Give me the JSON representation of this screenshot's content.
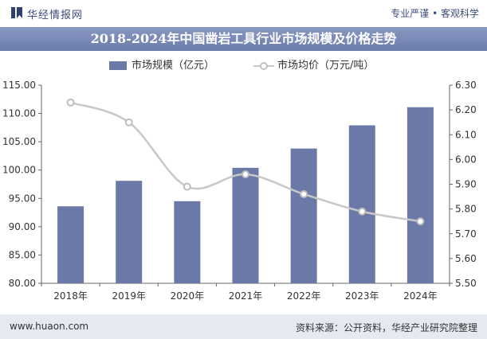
{
  "header": {
    "brand_name": "华经情报网",
    "tagline": "专业严谨 • 客观科学",
    "logo_icon": "bookmark-logo-icon"
  },
  "chart_data": {
    "type": "bar",
    "title": "2018-2024年中国凿岩工具行业市场规模及价格走势",
    "categories": [
      "2018年",
      "2019年",
      "2020年",
      "2021年",
      "2022年",
      "2023年",
      "2024年"
    ],
    "series": [
      {
        "name": "市场规模（亿元）",
        "type": "bar",
        "axis": "left",
        "color": "#6a79a7",
        "values": [
          93.6,
          98.1,
          94.5,
          100.4,
          103.8,
          107.9,
          111.1
        ]
      },
      {
        "name": "市场均价（万元/吨）",
        "type": "line",
        "axis": "right",
        "color": "#c8c8c8",
        "values": [
          6.23,
          6.15,
          5.89,
          5.94,
          5.86,
          5.79,
          5.75
        ]
      }
    ],
    "y_left": {
      "range": [
        80,
        115
      ],
      "ticks": [
        "80.00",
        "85.00",
        "90.00",
        "95.00",
        "100.00",
        "105.00",
        "110.00",
        "115.00"
      ]
    },
    "y_right": {
      "range": [
        5.5,
        6.3
      ],
      "ticks": [
        "5.50",
        "5.60",
        "5.70",
        "5.80",
        "5.90",
        "6.00",
        "6.10",
        "6.20",
        "6.30"
      ]
    },
    "grid": false,
    "legend_position": "top"
  },
  "footer": {
    "left": "www.huaon.com",
    "right": "资料来源：公开资料，华经产业研究院整理"
  }
}
